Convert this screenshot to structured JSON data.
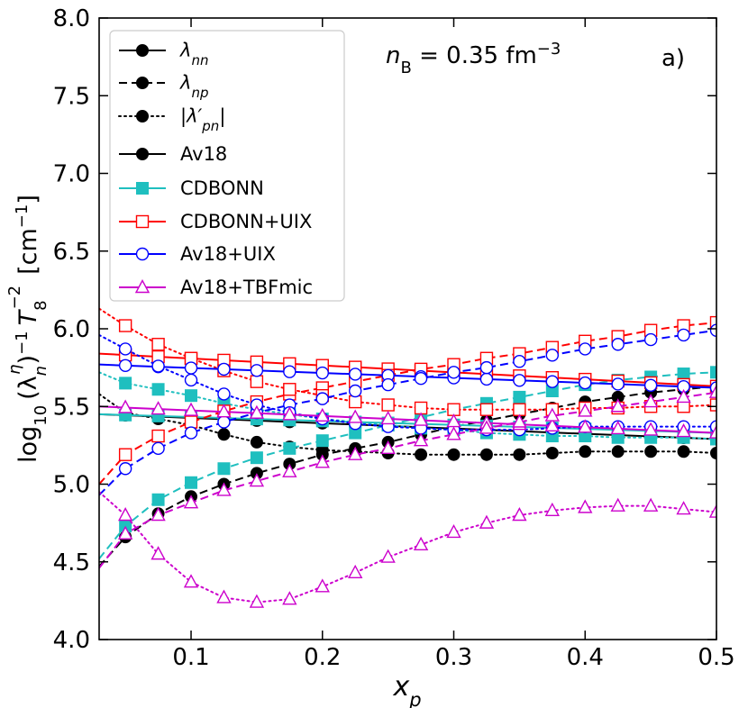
{
  "chart_data": {
    "type": "line",
    "panel_label": "a)",
    "annotation": "n_B = 0.35 fm^-3",
    "annotation_parts": {
      "var": "n",
      "sub": "B",
      "rest": " = 0.35 fm",
      "sup": "−3"
    },
    "xlabel": {
      "var": "x",
      "sub": "p"
    },
    "ylabel": {
      "pre": "log",
      "sub10": "10",
      "lam": "(λ",
      "lamsub": "n",
      "lamsup": "η",
      "post": ")",
      "sup1": "−1",
      "T": "T",
      "Tsub": "8",
      "Tsup": "−2",
      "unit": "[cm",
      "unitsup": "−1",
      "close": "]"
    },
    "xlim": [
      0.03,
      0.5
    ],
    "ylim": [
      4.0,
      8.0
    ],
    "xticks": [
      0.1,
      0.2,
      0.3,
      0.4,
      0.5
    ],
    "xtick_labels": [
      "0.1",
      "0.2",
      "0.3",
      "0.4",
      "0.5"
    ],
    "yticks": [
      4.0,
      4.5,
      5.0,
      5.5,
      6.0,
      6.5,
      7.0,
      7.5,
      8.0
    ],
    "ytick_labels": [
      "4.0",
      "4.5",
      "5.0",
      "5.5",
      "6.0",
      "6.5",
      "7.0",
      "7.5",
      "8.0"
    ],
    "legend": [
      {
        "label_main": "λ",
        "label_sub": "nn",
        "label_full": "λnn",
        "color": "#000000",
        "dash": "solid",
        "marker": "circle-filled"
      },
      {
        "label_main": "λ",
        "label_sub": "np",
        "label_full": "λnp",
        "color": "#000000",
        "dash": "dashed",
        "marker": "circle-filled"
      },
      {
        "label_main": "|λ′",
        "label_sub": "pn",
        "label_after": "|",
        "label_full": "|λ′pn|",
        "color": "#000000",
        "dash": "dotted",
        "marker": "circle-filled"
      },
      {
        "label_full": "Av18",
        "color": "#000000",
        "dash": "solid",
        "marker": "circle-filled"
      },
      {
        "label_full": "CDBONN",
        "color": "#1fbfbf",
        "dash": "solid",
        "marker": "square-filled"
      },
      {
        "label_full": "CDBONN+UIX",
        "color": "#ff0000",
        "dash": "solid",
        "marker": "square-open"
      },
      {
        "label_full": "Av18+UIX",
        "color": "#0000ff",
        "dash": "solid",
        "marker": "circle-open"
      },
      {
        "label_full": "Av18+TBFmic",
        "color": "#cc00cc",
        "dash": "solid",
        "marker": "triangle-open"
      }
    ],
    "x": [
      0.05,
      0.075,
      0.1,
      0.125,
      0.15,
      0.175,
      0.2,
      0.225,
      0.25,
      0.275,
      0.3,
      0.325,
      0.35,
      0.375,
      0.4,
      0.425,
      0.45,
      0.475,
      0.5
    ],
    "models": [
      {
        "name": "Av18",
        "color": "#000000",
        "marker": "circle-filled",
        "nn": {
          "x0": 5.45,
          "y0": 5.45,
          "y1": 5.29
        },
        "np": {
          "x0": 5.17,
          "y0": 4.47,
          "values": [
            4.66,
            4.81,
            4.92,
            5.0,
            5.07,
            5.13,
            5.19,
            5.23,
            5.27,
            5.32,
            5.37,
            5.41,
            5.45,
            5.49,
            5.53,
            5.56,
            5.59,
            5.61,
            5.63
          ]
        },
        "pn": {
          "y0": 5.58,
          "values": [
            5.46,
            5.42,
            5.38,
            5.32,
            5.27,
            5.24,
            5.22,
            5.21,
            5.2,
            5.19,
            5.19,
            5.19,
            5.19,
            5.2,
            5.21,
            5.21,
            5.21,
            5.21,
            5.2
          ]
        }
      },
      {
        "name": "CDBONN",
        "color": "#1fbfbf",
        "marker": "square-filled",
        "nn": {
          "y0": 5.45,
          "y1": 5.33
        },
        "np": {
          "y0": 4.52,
          "values": [
            4.73,
            4.9,
            5.01,
            5.1,
            5.17,
            5.23,
            5.28,
            5.33,
            5.38,
            5.43,
            5.48,
            5.52,
            5.56,
            5.6,
            5.64,
            5.67,
            5.69,
            5.71,
            5.72
          ]
        },
        "pn": {
          "y0": 5.72,
          "values": [
            5.65,
            5.61,
            5.57,
            5.52,
            5.48,
            5.45,
            5.42,
            5.4,
            5.38,
            5.36,
            5.35,
            5.33,
            5.32,
            5.31,
            5.31,
            5.3,
            5.3,
            5.3,
            5.29
          ]
        }
      },
      {
        "name": "CDBONN+UIX",
        "color": "#ff0000",
        "marker": "square-open",
        "nn": {
          "y0": 5.84,
          "y1": 5.63
        },
        "np": {
          "y0": 5.0,
          "values": [
            5.19,
            5.31,
            5.4,
            5.47,
            5.53,
            5.58,
            5.62,
            5.66,
            5.7,
            5.74,
            5.77,
            5.81,
            5.84,
            5.88,
            5.92,
            5.95,
            5.99,
            6.02,
            6.04
          ]
        },
        "pn": {
          "y0": 6.13,
          "values": [
            6.02,
            5.9,
            5.81,
            5.73,
            5.66,
            5.61,
            5.57,
            5.53,
            5.51,
            5.49,
            5.48,
            5.48,
            5.48,
            5.48,
            5.49,
            5.49,
            5.5,
            5.5,
            5.51
          ]
        }
      },
      {
        "name": "Av18+UIX",
        "color": "#0000ff",
        "marker": "circle-open",
        "nn": {
          "y0": 5.77,
          "y1": 5.62
        },
        "np": {
          "y0": 4.93,
          "values": [
            5.1,
            5.23,
            5.33,
            5.4,
            5.46,
            5.51,
            5.55,
            5.6,
            5.64,
            5.68,
            5.72,
            5.75,
            5.79,
            5.83,
            5.87,
            5.9,
            5.93,
            5.96,
            5.99
          ]
        },
        "pn": {
          "y0": 5.96,
          "values": [
            5.87,
            5.76,
            5.67,
            5.58,
            5.51,
            5.46,
            5.42,
            5.39,
            5.37,
            5.36,
            5.35,
            5.35,
            5.35,
            5.36,
            5.37,
            5.37,
            5.37,
            5.37,
            5.37
          ]
        }
      },
      {
        "name": "Av18+TBFmic",
        "color": "#cc00cc",
        "marker": "triangle-open",
        "nn": {
          "y0": 5.5,
          "y1": 5.33
        },
        "np": {
          "y0": 4.46,
          "values": [
            4.68,
            4.8,
            4.88,
            4.96,
            5.02,
            5.08,
            5.14,
            5.19,
            5.23,
            5.28,
            5.32,
            5.36,
            5.4,
            5.44,
            5.47,
            5.5,
            5.53,
            5.56,
            5.59
          ]
        },
        "pn": {
          "y0": 4.95,
          "values": [
            4.8,
            4.55,
            4.37,
            4.27,
            4.24,
            4.26,
            4.34,
            4.43,
            4.53,
            4.61,
            4.69,
            4.75,
            4.8,
            4.83,
            4.85,
            4.86,
            4.86,
            4.84,
            4.82
          ]
        }
      }
    ]
  }
}
